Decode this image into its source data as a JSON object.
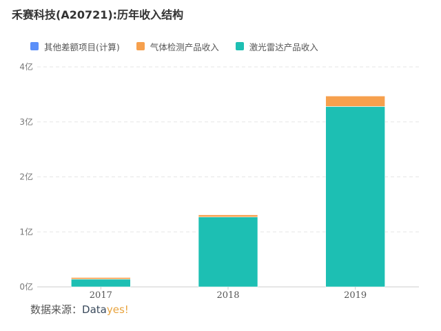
{
  "title": "禾赛科技(A20721):历年收入结构",
  "source": {
    "label": "数据来源：",
    "brand_part1": "Data",
    "brand_part2": "yes!"
  },
  "chart_data": {
    "type": "bar",
    "stacked": true,
    "categories": [
      "2017",
      "2018",
      "2019"
    ],
    "y_unit_suffix": "亿",
    "ylim": [
      0,
      4
    ],
    "y_ticks": [
      0,
      1,
      2,
      3,
      4
    ],
    "y_tick_labels": [
      "0亿",
      "1亿",
      "2亿",
      "3亿",
      "4亿"
    ],
    "grid": true,
    "legend_position": "top-left",
    "series": [
      {
        "name": "其他差额项目(计算)",
        "color": "#5b8ff9",
        "values": [
          0,
          0,
          0
        ]
      },
      {
        "name": "气体检测产品收入",
        "color": "#f6a04d",
        "values": [
          0.03,
          0.04,
          0.19
        ]
      },
      {
        "name": "激光雷达产品收入",
        "color": "#1dbfb3",
        "values": [
          0.14,
          1.27,
          3.28
        ]
      }
    ],
    "stack_order": [
      2,
      1,
      0
    ]
  }
}
